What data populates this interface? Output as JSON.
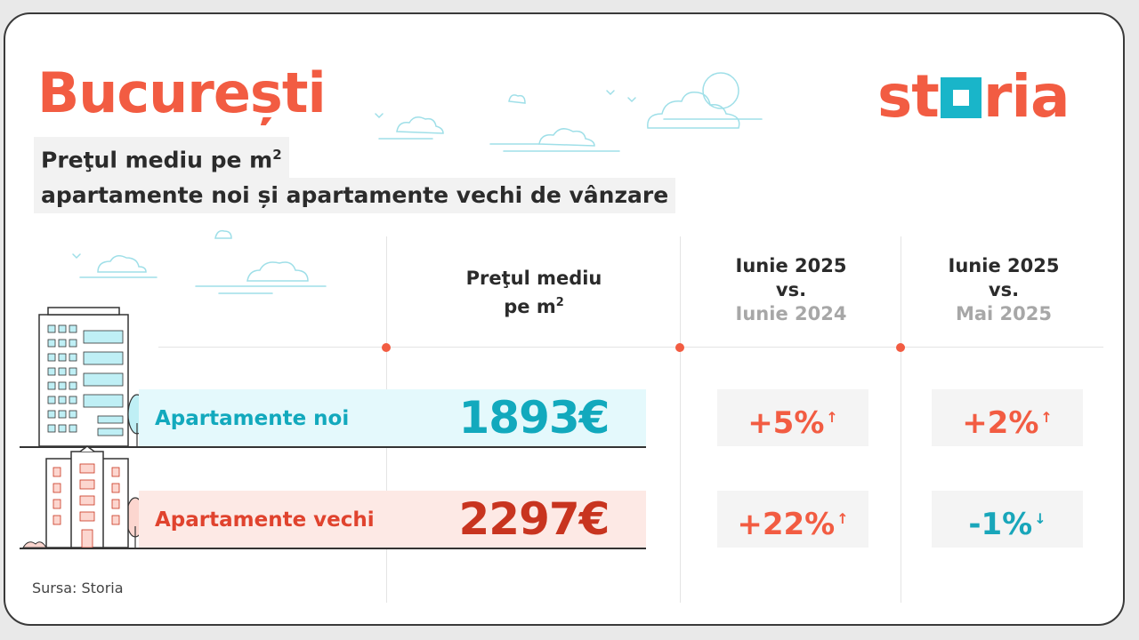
{
  "title": "București",
  "brand": {
    "name": "storia",
    "prefix": "st",
    "suffix": "ria",
    "accent": "#f25c42",
    "square_color": "#19b5c9"
  },
  "subtitle": {
    "line1": "Preţul mediu pe m",
    "line1_sup": "2",
    "line2": "apartamente noi și apartamente vechi de vânzare"
  },
  "columns": {
    "price": {
      "line1": "Preţul mediu",
      "line2": "pe m",
      "sup": "2"
    },
    "yoy": {
      "current": "Iunie 2025",
      "vs": "vs.",
      "compare": "Iunie 2024"
    },
    "mom": {
      "current": "Iunie 2025",
      "vs": "vs.",
      "compare": "Mai 2025"
    }
  },
  "rows": [
    {
      "label": "Apartamente noi",
      "price": "1893€",
      "yoy": "+5%",
      "yoy_dir": "up",
      "mom": "+2%",
      "mom_dir": "up",
      "color": "#12a9bd"
    },
    {
      "label": "Apartamente vechi",
      "price": "2297€",
      "yoy": "+22%",
      "yoy_dir": "up",
      "mom": "-1%",
      "mom_dir": "down",
      "color": "#e0432e"
    }
  ],
  "arrows": {
    "up": "↑",
    "down": "↓"
  },
  "source": "Sursa: Storia",
  "icons": [
    "new-building-icon",
    "old-building-icon",
    "tree-icon",
    "cloud-icon",
    "bird-icon"
  ]
}
